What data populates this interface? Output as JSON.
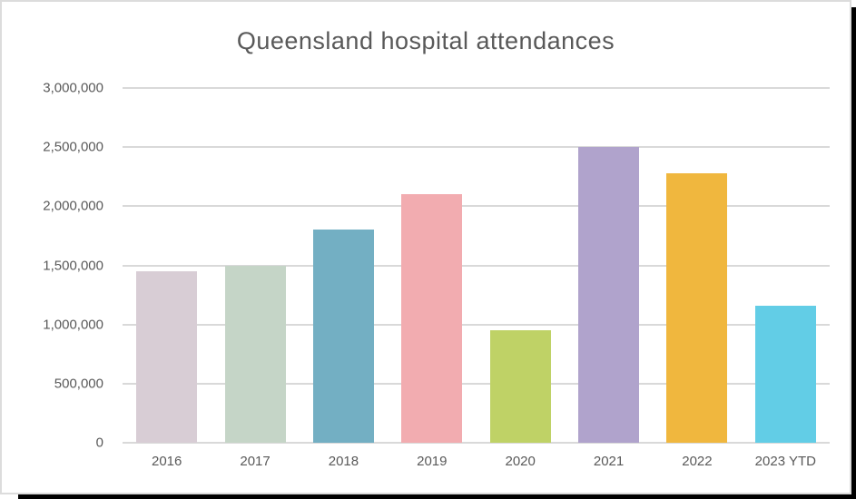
{
  "chart_data": {
    "type": "bar",
    "title": "Queensland hospital attendances",
    "categories": [
      "2016",
      "2017",
      "2018",
      "2019",
      "2020",
      "2021",
      "2022",
      "2023 YTD"
    ],
    "values": [
      1450000,
      1500000,
      1800000,
      2100000,
      950000,
      2500000,
      2280000,
      1160000
    ],
    "bar_colors": [
      "#d8cdd5",
      "#c5d5c7",
      "#73afc3",
      "#f2acb0",
      "#bfd266",
      "#b0a3cc",
      "#f0b73e",
      "#62cde6"
    ],
    "xlabel": "",
    "ylabel": "",
    "ylim": [
      0,
      3000000
    ],
    "grid": true,
    "legend_position": "none",
    "y_ticks": [
      {
        "label": "3,000,000",
        "value": 3000000
      },
      {
        "label": "2,500,000",
        "value": 2500000
      },
      {
        "label": "2,000,000",
        "value": 2000000
      },
      {
        "label": "1,500,000",
        "value": 1500000
      },
      {
        "label": "1,000,000",
        "value": 1000000
      },
      {
        "label": "500,000",
        "value": 500000
      },
      {
        "label": "0",
        "value": 0
      }
    ],
    "colors": {
      "text": "#595959",
      "gridline": "#d9d9d9",
      "axis_line": "#d9d9d9",
      "background": "#ffffff",
      "frame_border": "#dcdcdc",
      "frame_shadow": "#000000"
    }
  }
}
